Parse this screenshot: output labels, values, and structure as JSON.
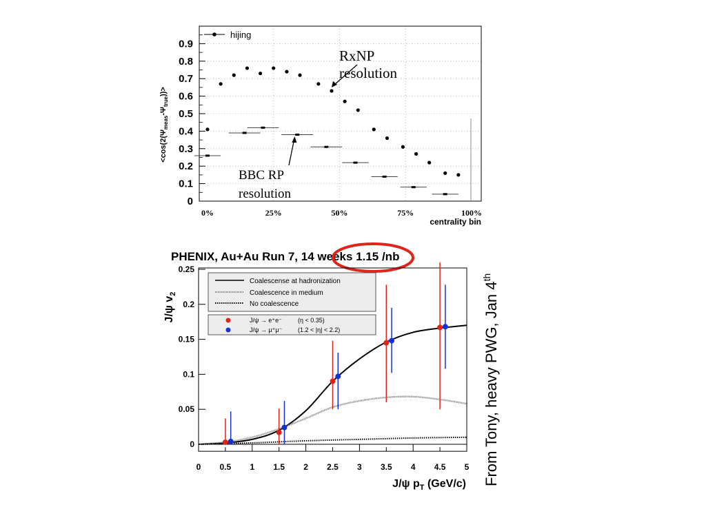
{
  "chart_data": [
    {
      "type": "scatter",
      "title": "",
      "xlabel": "centrality bin",
      "ylabel_parts": {
        "pre": "<cos(2(Ψ",
        "sub1": "meas",
        "mid": "-Ψ",
        "sub2": "true",
        "post": "))>"
      },
      "xlim": [
        0,
        100
      ],
      "ylim": [
        0,
        1
      ],
      "yticks": [
        0,
        0.1,
        0.2,
        0.3,
        0.4,
        0.5,
        0.6,
        0.7,
        0.8,
        0.9
      ],
      "ytick_labels": [
        "0",
        "0.1",
        "0.2",
        "0.3",
        "0.4",
        "0.5",
        "0.6",
        "0.7",
        "0.8",
        "0.9"
      ],
      "xticks": [
        0,
        25,
        50,
        75,
        100
      ],
      "xtick_labels": [
        "0%",
        "25%",
        "50%",
        "75%",
        "100%"
      ],
      "grid": true,
      "legend": {
        "position": "top-left",
        "entries": [
          "hijing"
        ]
      },
      "series": [
        {
          "name": "hijing",
          "x": [
            0,
            5,
            10,
            15,
            20,
            25,
            30,
            35,
            42,
            47,
            52,
            57,
            63,
            68,
            74,
            79,
            84,
            90,
            95
          ],
          "y": [
            0.41,
            0.67,
            0.72,
            0.76,
            0.73,
            0.76,
            0.74,
            0.72,
            0.67,
            0.63,
            0.57,
            0.52,
            0.41,
            0.36,
            0.31,
            0.27,
            0.22,
            0.16,
            0.15
          ]
        },
        {
          "x": [
            0,
            14,
            21,
            34,
            45,
            56,
            67,
            78,
            90
          ],
          "y": [
            0.26,
            0.39,
            0.42,
            0.38,
            0.31,
            0.22,
            0.14,
            0.08,
            0.04
          ],
          "xerr": [
            5,
            6,
            6,
            6,
            6,
            5,
            5,
            5,
            5
          ]
        }
      ],
      "annotations": [
        {
          "lines": [
            "RxNP",
            "resolution"
          ],
          "arrow_to": [
            47,
            0.65
          ]
        },
        {
          "lines": [
            "BBC RP",
            "resolution"
          ],
          "arrow_to": [
            33,
            0.37
          ]
        }
      ]
    },
    {
      "type": "line",
      "title": "PHENIX, Au+Au Run 7, 14 weeks 1.15 /nb",
      "highlighted_text": "14 weeks",
      "xlabel_parts": {
        "pre": "J/ψ p",
        "sub": "T",
        "post": " (GeV/c)"
      },
      "ylabel_parts": {
        "pre": "J/ψ v",
        "sub": "2"
      },
      "xlim": [
        0,
        5
      ],
      "ylim": [
        -0.01,
        0.25
      ],
      "xticks": [
        0,
        0.5,
        1,
        1.5,
        2,
        2.5,
        3,
        3.5,
        4,
        4.5,
        5
      ],
      "xtick_labels": [
        "0",
        "0.5",
        "1",
        "1.5",
        "2",
        "2.5",
        "3",
        "3.5",
        "4",
        "4.5",
        "5"
      ],
      "yticks": [
        0,
        0.05,
        0.1,
        0.15,
        0.2,
        0.25
      ],
      "ytick_labels": [
        "0",
        "0.05",
        "0.1",
        "0.15",
        "0.2",
        "0.25"
      ],
      "series": [
        {
          "name": "Coalescense at hadronization",
          "x": [
            0,
            0.5,
            1,
            1.5,
            2,
            2.5,
            3,
            3.5,
            4,
            4.5,
            5
          ],
          "y": [
            0,
            0.002,
            0.007,
            0.02,
            0.048,
            0.09,
            0.122,
            0.146,
            0.16,
            0.166,
            0.17
          ]
        },
        {
          "name": "Coalescence in medium",
          "x": [
            0,
            0.5,
            1,
            1.5,
            2,
            2.5,
            3,
            3.5,
            4,
            4.5,
            5
          ],
          "y": [
            0,
            0.003,
            0.01,
            0.022,
            0.037,
            0.053,
            0.062,
            0.067,
            0.068,
            0.064,
            0.058
          ]
        },
        {
          "name": "No coalescence",
          "x": [
            0,
            1,
            2,
            3,
            4,
            5
          ],
          "y": [
            0,
            0.002,
            0.005,
            0.007,
            0.009,
            0.01
          ]
        },
        {
          "name": "J/ψ → e⁺e⁻",
          "cut": "(η < 0.35)",
          "x": [
            0.5,
            1.5,
            2.5,
            3.5,
            4.5
          ],
          "y": [
            0.003,
            0.017,
            0.09,
            0.145,
            0.167
          ],
          "err_low": [
            0.003,
            0.017,
            0.04,
            0.085,
            0.117
          ],
          "err_high": [
            0.034,
            0.034,
            0.058,
            0.083,
            0.093
          ]
        },
        {
          "name": "J/ψ → μ⁺μ⁻",
          "cut": "(1.2 < |η| < 2.2)",
          "x": [
            0.6,
            1.6,
            2.6,
            3.6,
            4.6
          ],
          "y": [
            0.004,
            0.024,
            0.097,
            0.148,
            0.168
          ],
          "err_low": [
            0.004,
            0.024,
            0.047,
            0.046,
            0.06
          ],
          "err_high": [
            0.043,
            0.038,
            0.034,
            0.047,
            0.06
          ]
        }
      ],
      "colors": {
        "electron": "#e2231a",
        "muon": "#1433d6",
        "highlight": "#e2231a"
      }
    }
  ],
  "side_note": {
    "text": "From Tony, heavy PWG, Jan 4",
    "superscript": "th"
  }
}
